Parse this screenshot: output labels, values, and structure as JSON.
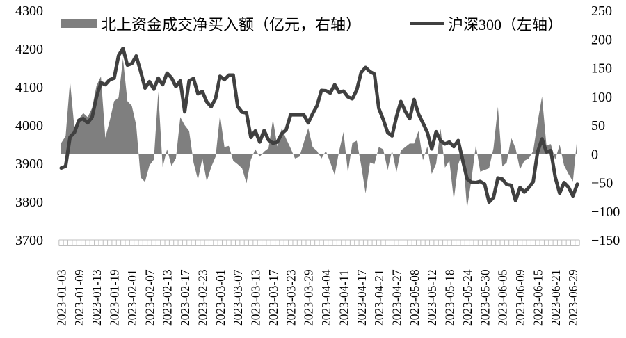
{
  "chart_data": {
    "type": "combo",
    "title": "",
    "legend_position": "top",
    "grid": false,
    "background": "#ffffff",
    "left_axis": {
      "min": 3700,
      "max": 4300,
      "ticks": [
        4300,
        4200,
        4100,
        4000,
        3900,
        3800,
        3700
      ]
    },
    "right_axis": {
      "min": -150,
      "max": 250,
      "ticks": [
        250,
        200,
        150,
        100,
        50,
        0,
        -50,
        -100,
        -150
      ]
    },
    "x": [
      "2023-01-03",
      "2023-01-04",
      "2023-01-05",
      "2023-01-06",
      "2023-01-09",
      "2023-01-10",
      "2023-01-11",
      "2023-01-12",
      "2023-01-13",
      "2023-01-16",
      "2023-01-17",
      "2023-01-18",
      "2023-01-19",
      "2023-01-20",
      "2023-01-30",
      "2023-01-31",
      "2023-02-01",
      "2023-02-02",
      "2023-02-03",
      "2023-02-06",
      "2023-02-07",
      "2023-02-08",
      "2023-02-09",
      "2023-02-10",
      "2023-02-13",
      "2023-02-14",
      "2023-02-15",
      "2023-02-16",
      "2023-02-17",
      "2023-02-20",
      "2023-02-21",
      "2023-02-22",
      "2023-02-23",
      "2023-02-24",
      "2023-02-27",
      "2023-02-28",
      "2023-03-01",
      "2023-03-02",
      "2023-03-03",
      "2023-03-06",
      "2023-03-07",
      "2023-03-08",
      "2023-03-09",
      "2023-03-10",
      "2023-03-13",
      "2023-03-14",
      "2023-03-15",
      "2023-03-16",
      "2023-03-17",
      "2023-03-20",
      "2023-03-21",
      "2023-03-22",
      "2023-03-23",
      "2023-03-24",
      "2023-03-27",
      "2023-03-28",
      "2023-03-29",
      "2023-03-30",
      "2023-03-31",
      "2023-04-03",
      "2023-04-04",
      "2023-04-06",
      "2023-04-07",
      "2023-04-10",
      "2023-04-11",
      "2023-04-12",
      "2023-04-13",
      "2023-04-14",
      "2023-04-17",
      "2023-04-18",
      "2023-04-19",
      "2023-04-20",
      "2023-04-21",
      "2023-04-24",
      "2023-04-25",
      "2023-04-26",
      "2023-04-27",
      "2023-04-28",
      "2023-05-04",
      "2023-05-05",
      "2023-05-08",
      "2023-05-09",
      "2023-05-10",
      "2023-05-11",
      "2023-05-12",
      "2023-05-15",
      "2023-05-16",
      "2023-05-17",
      "2023-05-18",
      "2023-05-19",
      "2023-05-22",
      "2023-05-23",
      "2023-05-24",
      "2023-05-25",
      "2023-05-26",
      "2023-05-29",
      "2023-05-30",
      "2023-05-31",
      "2023-06-01",
      "2023-06-02",
      "2023-06-05",
      "2023-06-06",
      "2023-06-07",
      "2023-06-08",
      "2023-06-09",
      "2023-06-12",
      "2023-06-13",
      "2023-06-14",
      "2023-06-15",
      "2023-06-16",
      "2023-06-19",
      "2023-06-20",
      "2023-06-21",
      "2023-06-26",
      "2023-06-27",
      "2023-06-28",
      "2023-06-29",
      "2023-06-30"
    ],
    "x_label_every": 4,
    "series": [
      {
        "name": "北上资金成交净买入额（亿元，右轴）",
        "type": "area",
        "axis": "right",
        "color": "#7f7f7f",
        "values": [
          19,
          31,
          127,
          44,
          61,
          71,
          64,
          80,
          119,
          135,
          28,
          58,
          92,
          98,
          166,
          92,
          84,
          50,
          -41,
          -49,
          -20,
          -10,
          108,
          -23,
          8,
          -21,
          -8,
          64,
          50,
          40,
          -15,
          -45,
          -8,
          -48,
          -23,
          -5,
          68,
          12,
          14,
          -12,
          -18,
          -25,
          -51,
          -10,
          8,
          -5,
          4,
          10,
          60,
          13,
          45,
          26,
          10,
          -8,
          -5,
          20,
          45,
          12,
          5,
          -8,
          5,
          -15,
          -37,
          5,
          38,
          -33,
          19,
          23,
          -20,
          -69,
          -15,
          -18,
          12,
          8,
          -28,
          6,
          -32,
          6,
          12,
          18,
          18,
          40,
          -11,
          13,
          -35,
          -17,
          44,
          -24,
          -12,
          -80,
          -19,
          5,
          -95,
          -45,
          15,
          -31,
          -28,
          -25,
          10,
          82,
          -22,
          -15,
          28,
          10,
          -27,
          -12,
          -8,
          5,
          55,
          100,
          15,
          17,
          -10,
          16,
          -20,
          -35,
          -48,
          30
        ]
      },
      {
        "name": "沪深300（左轴）",
        "type": "line",
        "axis": "left",
        "color": "#404040",
        "values": [
          3888,
          3893,
          3969,
          3981,
          4013,
          4017,
          4006,
          4021,
          4074,
          4111,
          4106,
          4119,
          4123,
          4182,
          4201,
          4157,
          4161,
          4181,
          4141,
          4097,
          4114,
          4094,
          4123,
          4106,
          4136,
          4124,
          4101,
          4116,
          4035,
          4116,
          4122,
          4082,
          4088,
          4061,
          4048,
          4070,
          4128,
          4119,
          4131,
          4131,
          4049,
          4034,
          4032,
          3968,
          3985,
          3956,
          3986,
          3961,
          3953,
          3956,
          3978,
          3988,
          4027,
          4027,
          4027,
          4027,
          4006,
          4030,
          4051,
          4091,
          4090,
          4084,
          4106,
          4086,
          4089,
          4074,
          4069,
          4092,
          4138,
          4151,
          4140,
          4134,
          4044,
          4015,
          3981,
          3972,
          4022,
          4062,
          4036,
          4017,
          4067,
          4029,
          4006,
          3981,
          3938,
          3983,
          3959,
          3951,
          3956,
          3944,
          3960,
          3909,
          3860,
          3851,
          3850,
          3853,
          3846,
          3799,
          3811,
          3862,
          3859,
          3845,
          3843,
          3803,
          3837,
          3825,
          3837,
          3852,
          3930,
          3964,
          3930,
          3934,
          3864,
          3822,
          3850,
          3838,
          3815,
          3846
        ]
      }
    ],
    "axis_tick_color": "#bfbfbf"
  }
}
